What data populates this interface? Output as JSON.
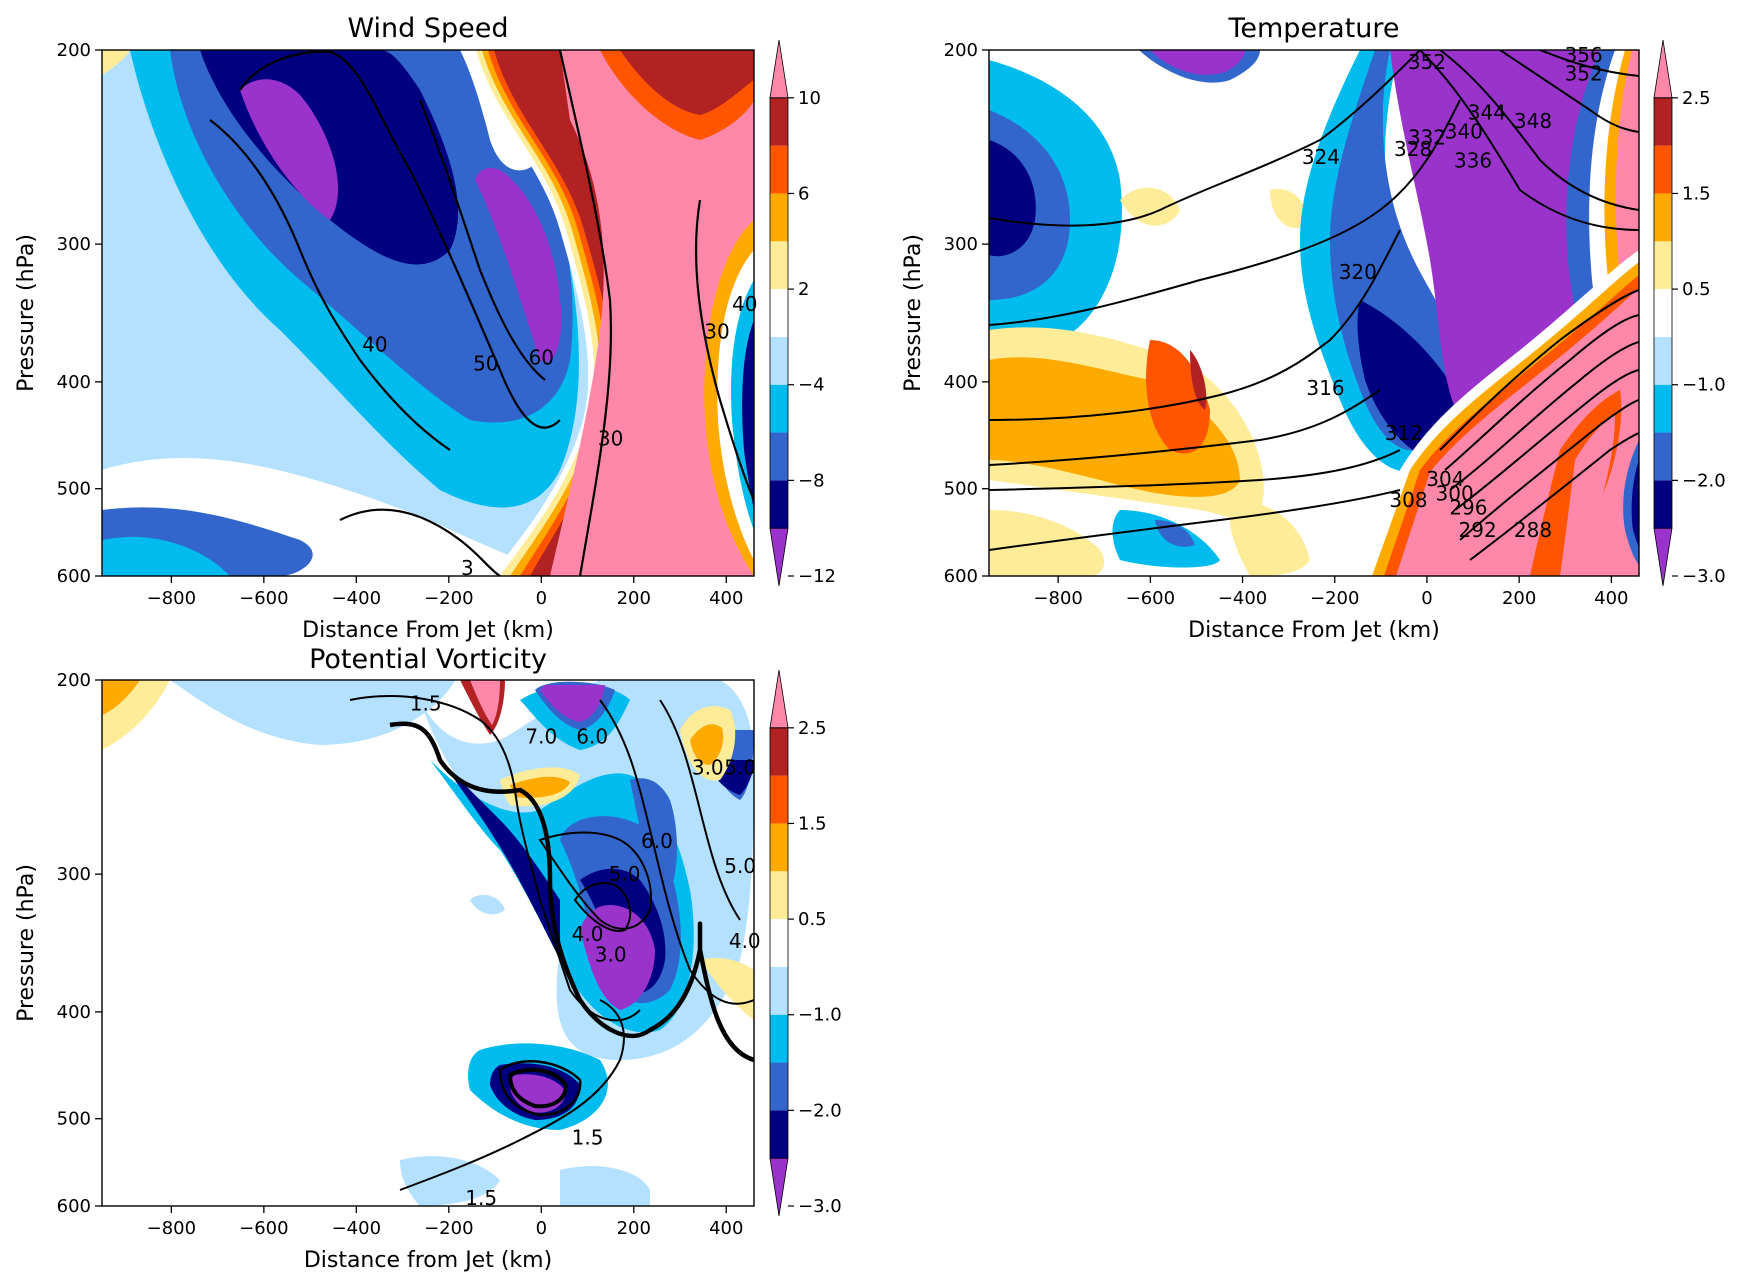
{
  "colorbar_colors": [
    "#9933cc",
    "#000080",
    "#3366cc",
    "#00bbee",
    "#b4e1ff",
    "#ffffff",
    "#ffec99",
    "#ffaa00",
    "#ff5500",
    "#b22222",
    "#ff88aa"
  ],
  "chart_data": [
    {
      "type": "heatmap",
      "title": "Wind Speed",
      "xlabel": "Distance From Jet (km)",
      "ylabel": "Pressure (hPa)",
      "xlim": [
        -950,
        460
      ],
      "ylim": [
        600,
        200
      ],
      "y_scale": "log",
      "xticks": [
        -800,
        -600,
        -400,
        -200,
        0,
        200,
        400
      ],
      "xtick_labels": [
        "−800",
        "−600",
        "−400",
        "−200",
        "0",
        "200",
        "400"
      ],
      "yticks": [
        200,
        300,
        400,
        500,
        600
      ],
      "ytick_labels": [
        "200",
        "300",
        "400",
        "500",
        "600"
      ],
      "colorbar_levels": [
        -12,
        -10,
        -8,
        -6,
        -4,
        -2,
        2,
        4,
        6,
        8,
        10,
        12
      ],
      "colorbar_ticks": [
        -12,
        -8,
        -4,
        2,
        6,
        10
      ],
      "colorbar_tick_labels": [
        "−12",
        "−8",
        "−4",
        "2",
        "6",
        "10"
      ],
      "contour_labels": [
        {
          "text": "40",
          "x": -360,
          "y": 370
        },
        {
          "text": "50",
          "x": -120,
          "y": 385
        },
        {
          "text": "60",
          "x": 0,
          "y": 380
        },
        {
          "text": "30",
          "x": 150,
          "y": 450
        },
        {
          "text": "30",
          "x": 380,
          "y": 360
        },
        {
          "text": "40",
          "x": 440,
          "y": 340
        },
        {
          "text": "3",
          "x": -160,
          "y": 590
        }
      ]
    },
    {
      "type": "heatmap",
      "title": "Temperature",
      "xlabel": "Distance From Jet (km)",
      "ylabel": "Pressure (hPa)",
      "xlim": [
        -950,
        460
      ],
      "ylim": [
        600,
        200
      ],
      "y_scale": "log",
      "xticks": [
        -800,
        -600,
        -400,
        -200,
        0,
        200,
        400
      ],
      "xtick_labels": [
        "−800",
        "−600",
        "−400",
        "−200",
        "0",
        "200",
        "400"
      ],
      "yticks": [
        200,
        300,
        400,
        500,
        600
      ],
      "ytick_labels": [
        "200",
        "300",
        "400",
        "500",
        "600"
      ],
      "colorbar_levels": [
        -3.0,
        -2.5,
        -2.0,
        -1.5,
        -1.0,
        -0.5,
        0.5,
        1.0,
        1.5,
        2.0,
        2.5,
        3.0
      ],
      "colorbar_ticks": [
        -3.0,
        -2.0,
        -1.0,
        0.5,
        1.5,
        2.5
      ],
      "colorbar_tick_labels": [
        "−3.0",
        "−2.0",
        "−1.0",
        "0.5",
        "1.5",
        "2.5"
      ],
      "contour_labels": [
        {
          "text": "352",
          "x": 0,
          "y": 205
        },
        {
          "text": "356",
          "x": 340,
          "y": 202
        },
        {
          "text": "352",
          "x": 340,
          "y": 210
        },
        {
          "text": "344",
          "x": 130,
          "y": 228
        },
        {
          "text": "348",
          "x": 230,
          "y": 232
        },
        {
          "text": "340",
          "x": 80,
          "y": 237
        },
        {
          "text": "332",
          "x": 0,
          "y": 240
        },
        {
          "text": "328",
          "x": -30,
          "y": 246
        },
        {
          "text": "336",
          "x": 100,
          "y": 252
        },
        {
          "text": "324",
          "x": -230,
          "y": 250
        },
        {
          "text": "320",
          "x": -150,
          "y": 318
        },
        {
          "text": "316",
          "x": -220,
          "y": 405
        },
        {
          "text": "312",
          "x": -50,
          "y": 445
        },
        {
          "text": "308",
          "x": -40,
          "y": 512
        },
        {
          "text": "304",
          "x": 40,
          "y": 490
        },
        {
          "text": "300",
          "x": 60,
          "y": 505
        },
        {
          "text": "296",
          "x": 90,
          "y": 520
        },
        {
          "text": "292",
          "x": 110,
          "y": 545
        },
        {
          "text": "288",
          "x": 230,
          "y": 545
        }
      ]
    },
    {
      "type": "heatmap",
      "title": "Potential Vorticity",
      "xlabel": "Distance from Jet (km)",
      "ylabel": "Pressure (hPa)",
      "xlim": [
        -950,
        460
      ],
      "ylim": [
        600,
        200
      ],
      "y_scale": "log",
      "xticks": [
        -800,
        -600,
        -400,
        -200,
        0,
        200,
        400
      ],
      "xtick_labels": [
        "−800",
        "−600",
        "−400",
        "−200",
        "0",
        "200",
        "400"
      ],
      "yticks": [
        200,
        300,
        400,
        500,
        600
      ],
      "ytick_labels": [
        "200",
        "300",
        "400",
        "500",
        "600"
      ],
      "colorbar_levels": [
        -3.0,
        -2.5,
        -2.0,
        -1.5,
        -1.0,
        -0.5,
        0.5,
        1.0,
        1.5,
        2.0,
        2.5,
        3.0
      ],
      "colorbar_ticks": [
        -3.0,
        -2.0,
        -1.0,
        0.5,
        1.5,
        2.5
      ],
      "colorbar_tick_labels": [
        "−3.0",
        "−2.0",
        "−1.0",
        "0.5",
        "1.5",
        "2.5"
      ],
      "contour_labels": [
        {
          "text": "1.5",
          "x": -250,
          "y": 210
        },
        {
          "text": "7.0",
          "x": 0,
          "y": 225
        },
        {
          "text": "6.0",
          "x": 110,
          "y": 225
        },
        {
          "text": "3.0",
          "x": 360,
          "y": 240
        },
        {
          "text": "5.0",
          "x": 430,
          "y": 240
        },
        {
          "text": "6.0",
          "x": 250,
          "y": 280
        },
        {
          "text": "5.0",
          "x": 180,
          "y": 300
        },
        {
          "text": "5.0",
          "x": 430,
          "y": 295
        },
        {
          "text": "4.0",
          "x": 100,
          "y": 340
        },
        {
          "text": "3.0",
          "x": 150,
          "y": 355
        },
        {
          "text": "4.0",
          "x": 440,
          "y": 345
        },
        {
          "text": "1.5",
          "x": 100,
          "y": 520
        },
        {
          "text": "1.5",
          "x": -130,
          "y": 590
        }
      ]
    }
  ]
}
